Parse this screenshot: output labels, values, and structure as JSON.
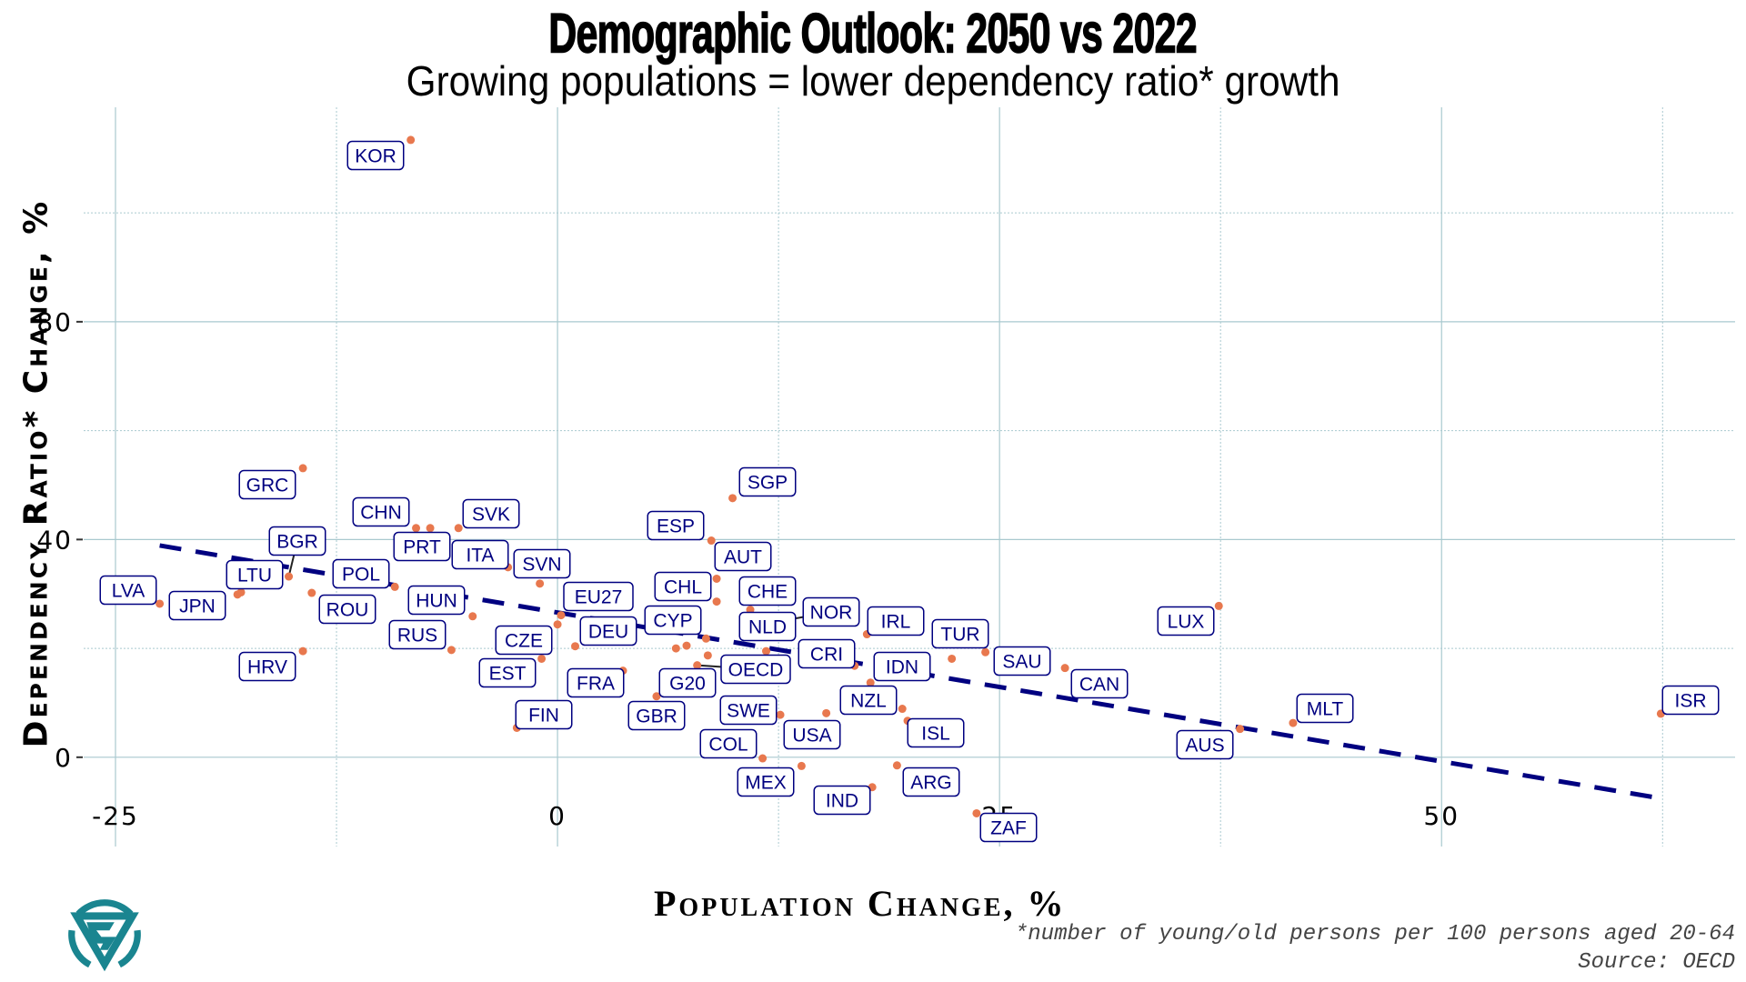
{
  "title": "Demographic Outlook: 2050 vs 2022",
  "subtitle": "Growing populations = lower dependency ratio* growth",
  "footnote": "*number of young/old persons per 100 persons aged 20-64",
  "source": "Source: OECD",
  "logo": {
    "icon": "triangle-s-logo-icon",
    "color": "#1a8590"
  },
  "colors": {
    "point": "#e8784e",
    "label_text": "#000080",
    "label_border": "#000080",
    "trend": "#000080",
    "grid": "#a9c9cf"
  },
  "chart_data": {
    "type": "scatter",
    "title": "Demographic Outlook: 2050 vs 2022",
    "subtitle": "Growing populations = lower dependency ratio* growth",
    "xlabel": "Population Change, %",
    "ylabel": "Dependency Ratio* Change, %",
    "xlim": [
      -26.8,
      66.6
    ],
    "ylim": [
      -16.4,
      119.4
    ],
    "xticks": [
      -25,
      0,
      25,
      50
    ],
    "xtick_labels": [
      "-25",
      "0",
      "25",
      "50"
    ],
    "yticks": [
      0,
      40,
      80
    ],
    "ytick_labels": [
      "0",
      "40",
      "80"
    ],
    "grid": true,
    "legend": "none",
    "trend_line": {
      "style": "dashed",
      "x": [
        -22.5,
        62.3
      ],
      "y": [
        38.9,
        -7.5
      ]
    },
    "points": [
      {
        "label": "KOR",
        "x": -8.3,
        "y": 113.4
      },
      {
        "label": "GRC",
        "x": -14.4,
        "y": 53.1
      },
      {
        "label": "CHN",
        "x": -8.0,
        "y": 42.1
      },
      {
        "label": "PRT",
        "x": -7.2,
        "y": 42.1
      },
      {
        "label": "SVK",
        "x": -5.6,
        "y": 42.1
      },
      {
        "label": "ITA",
        "x": -2.8,
        "y": 34.9
      },
      {
        "label": "BGR",
        "x": -15.2,
        "y": 33.2
      },
      {
        "label": "LTU",
        "x": -17.9,
        "y": 30.3
      },
      {
        "label": "JPN",
        "x": -18.1,
        "y": 29.9
      },
      {
        "label": "LVA",
        "x": -22.5,
        "y": 28.2
      },
      {
        "label": "ROU",
        "x": -13.9,
        "y": 30.2
      },
      {
        "label": "POL",
        "x": -9.2,
        "y": 31.3
      },
      {
        "label": "SVN",
        "x": -1.0,
        "y": 31.9
      },
      {
        "label": "HUN",
        "x": -4.8,
        "y": 25.9
      },
      {
        "label": "RUS",
        "x": -6.0,
        "y": 19.7
      },
      {
        "label": "HRV",
        "x": -14.4,
        "y": 19.5
      },
      {
        "label": "EU27",
        "x": 0.2,
        "y": 26.1
      },
      {
        "label": "CZE",
        "x": 0.0,
        "y": 24.4
      },
      {
        "label": "DEU",
        "x": 1.0,
        "y": 20.4
      },
      {
        "label": "EST",
        "x": -0.9,
        "y": 18.1
      },
      {
        "label": "FIN",
        "x": -2.3,
        "y": 5.4
      },
      {
        "label": "FRA",
        "x": 3.7,
        "y": 15.9
      },
      {
        "label": "GBR",
        "x": 5.6,
        "y": 11.2
      },
      {
        "label": "SGP",
        "x": 9.9,
        "y": 47.6
      },
      {
        "label": "ESP",
        "x": 8.7,
        "y": 39.8
      },
      {
        "label": "AUT",
        "x": 9.0,
        "y": 32.8
      },
      {
        "label": "CHL",
        "x": 9.0,
        "y": 28.6
      },
      {
        "label": "CHE",
        "x": 10.9,
        "y": 27.1
      },
      {
        "label": "NOR",
        "x": 12.6,
        "y": 25.0
      },
      {
        "label": "CYP",
        "x": 6.7,
        "y": 20.0
      },
      {
        "label": "G20",
        "x": 8.5,
        "y": 18.7
      },
      {
        "label": "OECD",
        "x": 7.9,
        "y": 16.9
      },
      {
        "label": "NLD",
        "x": 11.8,
        "y": 19.5
      },
      {
        "label": "IRL",
        "x": 17.5,
        "y": 22.6
      },
      {
        "label": "CRI",
        "x": 16.8,
        "y": 16.8
      },
      {
        "label": "IDN",
        "x": 17.7,
        "y": 13.7
      },
      {
        "label": "TUR",
        "x": 22.3,
        "y": 18.1
      },
      {
        "label": "SAU",
        "x": 24.2,
        "y": 19.3
      },
      {
        "label": "CAN",
        "x": 28.7,
        "y": 16.4
      },
      {
        "label": "NZL",
        "x": 19.5,
        "y": 8.9
      },
      {
        "label": "ISL",
        "x": 19.8,
        "y": 6.7
      },
      {
        "label": "SWE",
        "x": 12.6,
        "y": 7.8
      },
      {
        "label": "USA",
        "x": 15.2,
        "y": 8.1
      },
      {
        "label": "COL",
        "x": 11.6,
        "y": -0.2
      },
      {
        "label": "MEX",
        "x": 13.8,
        "y": -1.6
      },
      {
        "label": "ARG",
        "x": 19.2,
        "y": -1.5
      },
      {
        "label": "IND",
        "x": 17.8,
        "y": -5.5
      },
      {
        "label": "ZAF",
        "x": 23.7,
        "y": -10.3
      },
      {
        "label": "LUX",
        "x": 37.4,
        "y": 27.8
      },
      {
        "label": "AUS",
        "x": 38.6,
        "y": 5.2
      },
      {
        "label": "MLT",
        "x": 41.6,
        "y": 6.3
      },
      {
        "label": "ISR",
        "x": 62.4,
        "y": 8.0
      },
      {
        "label": "",
        "x": 7.3,
        "y": 20.5
      },
      {
        "label": "",
        "x": 8.4,
        "y": 21.8
      }
    ]
  }
}
